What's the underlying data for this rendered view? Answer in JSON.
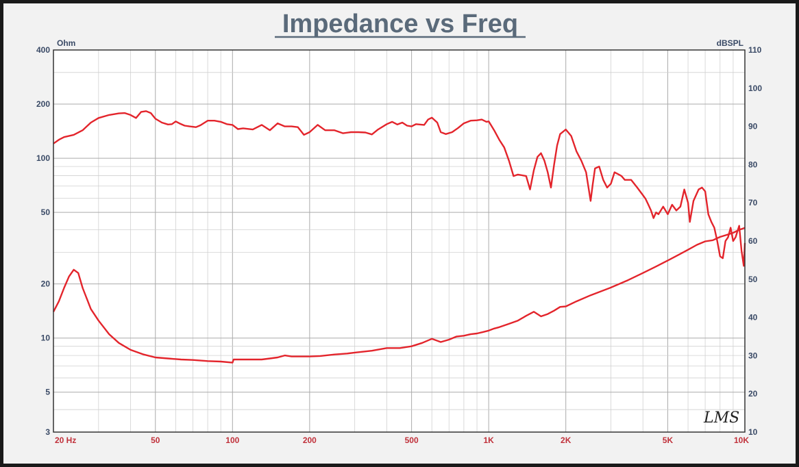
{
  "colors": {
    "curve": "#e3242b",
    "frame": "#1a1a1a",
    "panel": "#f2f2f2",
    "plot_bg": "#ffffff",
    "grid_major": "#aaaaaa",
    "grid_minor": "#d0d0d0",
    "title": "#5a6a7a",
    "axis_text": "#3a4a66",
    "x_text": "#c0303a"
  },
  "chart_data": {
    "type": "line",
    "title": "Impedance vs Freq",
    "left_unit": "Ohm",
    "right_unit": "dBSPL",
    "x_scale": "log",
    "xlim": [
      20,
      10000
    ],
    "ylim_left": [
      3,
      400
    ],
    "y_left_scale": "log",
    "ylim_right": [
      10,
      110
    ],
    "x_ticks": [
      {
        "value": 20,
        "label": "20  Hz"
      },
      {
        "value": 50,
        "label": "50"
      },
      {
        "value": 100,
        "label": "100"
      },
      {
        "value": 200,
        "label": "200"
      },
      {
        "value": 500,
        "label": "500"
      },
      {
        "value": 1000,
        "label": "1K"
      },
      {
        "value": 2000,
        "label": "2K"
      },
      {
        "value": 5000,
        "label": "5K"
      },
      {
        "value": 10000,
        "label": "10K"
      }
    ],
    "y_left_ticks": [
      {
        "value": 400,
        "label": "400"
      },
      {
        "value": 200,
        "label": "200"
      },
      {
        "value": 100,
        "label": "100"
      },
      {
        "value": 50,
        "label": "50"
      },
      {
        "value": 20,
        "label": "20"
      },
      {
        "value": 10,
        "label": "10"
      },
      {
        "value": 5,
        "label": "5"
      },
      {
        "value": 3,
        "label": "3"
      }
    ],
    "y_right_ticks": [
      110,
      100,
      90,
      80,
      70,
      60,
      50,
      40,
      30,
      20,
      10
    ],
    "grid": true,
    "watermark": "LMS",
    "series": [
      {
        "axis": "right",
        "points": [
          [
            20,
            85.5
          ],
          [
            21,
            86.5
          ],
          [
            22,
            87.2
          ],
          [
            24,
            87.8
          ],
          [
            26,
            89
          ],
          [
            28,
            91
          ],
          [
            30,
            92.2
          ],
          [
            33,
            93
          ],
          [
            36,
            93.4
          ],
          [
            38,
            93.5
          ],
          [
            40,
            93
          ],
          [
            42,
            92.2
          ],
          [
            44,
            93.8
          ],
          [
            46,
            94
          ],
          [
            48,
            93.5
          ],
          [
            50,
            92
          ],
          [
            53,
            91
          ],
          [
            56,
            90.5
          ],
          [
            58,
            90.6
          ],
          [
            60,
            91.3
          ],
          [
            62,
            90.8
          ],
          [
            65,
            90.2
          ],
          [
            68,
            90
          ],
          [
            72,
            89.8
          ],
          [
            75,
            90.3
          ],
          [
            80,
            91.5
          ],
          [
            85,
            91.5
          ],
          [
            90,
            91.2
          ],
          [
            95,
            90.6
          ],
          [
            100,
            90.4
          ],
          [
            105,
            89.3
          ],
          [
            110,
            89.5
          ],
          [
            120,
            89.2
          ],
          [
            130,
            90.4
          ],
          [
            140,
            89
          ],
          [
            150,
            90.8
          ],
          [
            160,
            90
          ],
          [
            170,
            90
          ],
          [
            180,
            89.8
          ],
          [
            190,
            87.8
          ],
          [
            200,
            88.5
          ],
          [
            215,
            90.4
          ],
          [
            230,
            89
          ],
          [
            250,
            89
          ],
          [
            270,
            88.2
          ],
          [
            290,
            88.5
          ],
          [
            310,
            88.5
          ],
          [
            330,
            88.4
          ],
          [
            350,
            87.9
          ],
          [
            370,
            89.2
          ],
          [
            400,
            90.6
          ],
          [
            420,
            91.2
          ],
          [
            440,
            90.5
          ],
          [
            460,
            91
          ],
          [
            480,
            90.2
          ],
          [
            500,
            90
          ],
          [
            520,
            90.6
          ],
          [
            560,
            90.4
          ],
          [
            580,
            91.8
          ],
          [
            600,
            92.3
          ],
          [
            630,
            91
          ],
          [
            650,
            88.5
          ],
          [
            680,
            88
          ],
          [
            720,
            88.5
          ],
          [
            760,
            89.6
          ],
          [
            800,
            90.8
          ],
          [
            850,
            91.5
          ],
          [
            900,
            91.6
          ],
          [
            940,
            91.8
          ],
          [
            980,
            91.2
          ],
          [
            1000,
            91.3
          ],
          [
            1050,
            89
          ],
          [
            1100,
            86.5
          ],
          [
            1150,
            84.5
          ],
          [
            1200,
            81
          ],
          [
            1250,
            77
          ],
          [
            1300,
            77.4
          ],
          [
            1350,
            77.2
          ],
          [
            1400,
            77
          ],
          [
            1450,
            73.5
          ],
          [
            1500,
            78.5
          ],
          [
            1550,
            82
          ],
          [
            1600,
            83
          ],
          [
            1650,
            81
          ],
          [
            1700,
            78
          ],
          [
            1750,
            74
          ],
          [
            1800,
            80
          ],
          [
            1850,
            85
          ],
          [
            1900,
            88
          ],
          [
            2000,
            89.2
          ],
          [
            2100,
            87.5
          ],
          [
            2200,
            83.5
          ],
          [
            2300,
            81
          ],
          [
            2400,
            78
          ],
          [
            2500,
            70.5
          ],
          [
            2550,
            75
          ],
          [
            2600,
            79
          ],
          [
            2700,
            79.5
          ],
          [
            2800,
            76
          ],
          [
            2900,
            74
          ],
          [
            3000,
            75
          ],
          [
            3100,
            78
          ],
          [
            3200,
            77.5
          ],
          [
            3300,
            77
          ],
          [
            3400,
            76
          ],
          [
            3600,
            76
          ],
          [
            3800,
            74
          ],
          [
            4000,
            72
          ],
          [
            4100,
            71
          ],
          [
            4200,
            69.5
          ],
          [
            4300,
            68
          ],
          [
            4400,
            66
          ],
          [
            4500,
            67.5
          ],
          [
            4600,
            67
          ],
          [
            4800,
            69
          ],
          [
            5000,
            67
          ],
          [
            5200,
            69.5
          ],
          [
            5400,
            68
          ],
          [
            5600,
            69
          ],
          [
            5800,
            73.5
          ],
          [
            6000,
            70
          ],
          [
            6100,
            65
          ],
          [
            6300,
            70.5
          ],
          [
            6600,
            73.5
          ],
          [
            6800,
            74
          ],
          [
            7000,
            73
          ],
          [
            7200,
            67
          ],
          [
            7400,
            65
          ],
          [
            7600,
            63.5
          ],
          [
            7800,
            60
          ],
          [
            8000,
            56
          ],
          [
            8200,
            55.5
          ],
          [
            8400,
            60
          ],
          [
            8600,
            61
          ],
          [
            8800,
            63.5
          ],
          [
            9000,
            60
          ],
          [
            9200,
            61
          ],
          [
            9500,
            64
          ],
          [
            9700,
            57.5
          ],
          [
            9900,
            53.5
          ],
          [
            10000,
            59.5
          ]
        ]
      },
      {
        "axis": "left",
        "points": [
          [
            20,
            14
          ],
          [
            21,
            16
          ],
          [
            22,
            19
          ],
          [
            23,
            22
          ],
          [
            24,
            24
          ],
          [
            25,
            23
          ],
          [
            26,
            19
          ],
          [
            28,
            14.5
          ],
          [
            30,
            12.5
          ],
          [
            33,
            10.5
          ],
          [
            36,
            9.4
          ],
          [
            40,
            8.6
          ],
          [
            45,
            8.1
          ],
          [
            50,
            7.8
          ],
          [
            56,
            7.7
          ],
          [
            63,
            7.6
          ],
          [
            70,
            7.55
          ],
          [
            80,
            7.45
          ],
          [
            90,
            7.4
          ],
          [
            100,
            7.3
          ],
          [
            101,
            7.6
          ],
          [
            110,
            7.6
          ],
          [
            120,
            7.6
          ],
          [
            130,
            7.6
          ],
          [
            140,
            7.7
          ],
          [
            150,
            7.8
          ],
          [
            160,
            8
          ],
          [
            170,
            7.9
          ],
          [
            180,
            7.9
          ],
          [
            200,
            7.9
          ],
          [
            220,
            7.95
          ],
          [
            250,
            8.1
          ],
          [
            280,
            8.2
          ],
          [
            300,
            8.3
          ],
          [
            350,
            8.5
          ],
          [
            400,
            8.8
          ],
          [
            450,
            8.8
          ],
          [
            500,
            9
          ],
          [
            550,
            9.4
          ],
          [
            600,
            9.9
          ],
          [
            650,
            9.5
          ],
          [
            700,
            9.8
          ],
          [
            750,
            10.2
          ],
          [
            800,
            10.3
          ],
          [
            850,
            10.5
          ],
          [
            900,
            10.6
          ],
          [
            950,
            10.8
          ],
          [
            1000,
            11
          ],
          [
            1050,
            11.3
          ],
          [
            1100,
            11.5
          ],
          [
            1200,
            12
          ],
          [
            1300,
            12.5
          ],
          [
            1400,
            13.3
          ],
          [
            1500,
            14
          ],
          [
            1600,
            13.2
          ],
          [
            1700,
            13.6
          ],
          [
            1800,
            14.2
          ],
          [
            1900,
            14.9
          ],
          [
            2000,
            15
          ],
          [
            2200,
            16
          ],
          [
            2500,
            17.3
          ],
          [
            3000,
            19.1
          ],
          [
            3500,
            21
          ],
          [
            4000,
            23
          ],
          [
            4500,
            25
          ],
          [
            5000,
            27
          ],
          [
            5500,
            29
          ],
          [
            6000,
            31
          ],
          [
            6500,
            33
          ],
          [
            7000,
            34.5
          ],
          [
            7500,
            35
          ],
          [
            8000,
            36.5
          ],
          [
            8500,
            37.5
          ],
          [
            9000,
            38.5
          ],
          [
            9500,
            40
          ],
          [
            10000,
            41
          ]
        ]
      }
    ]
  }
}
